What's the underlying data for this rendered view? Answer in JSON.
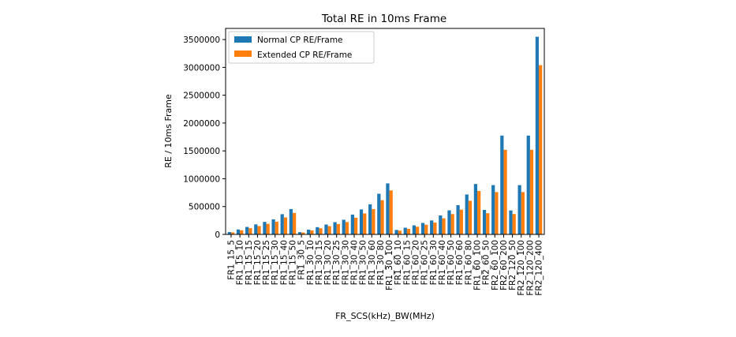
{
  "chart_data": {
    "type": "bar",
    "title": "Total RE in 10ms Frame",
    "xlabel": "FR_SCS(kHz)_BW(MHz)",
    "ylabel": "RE / 10ms Frame",
    "ylim": [
      0,
      3700000
    ],
    "yticks": [
      0,
      500000,
      1000000,
      1500000,
      2000000,
      2500000,
      3000000,
      3500000
    ],
    "ytick_labels": [
      "0",
      "500000",
      "1000000",
      "1500000",
      "2000000",
      "2500000",
      "3000000",
      "3500000"
    ],
    "legend_position": "upper-left",
    "grid": false,
    "categories": [
      "FR1_15_5",
      "FR1_15_10",
      "FR1_15_15",
      "FR1_15_20",
      "FR1_15_25",
      "FR1_15_30",
      "FR1_15_40",
      "FR1_15_50",
      "FR1_30_5",
      "FR1_30_10",
      "FR1_30_15",
      "FR1_30_20",
      "FR1_30_25",
      "FR1_30_30",
      "FR1_30_40",
      "FR1_30_50",
      "FR1_30_60",
      "FR1_30_80",
      "FR1_30_100",
      "FR1_60_10",
      "FR1_60_15",
      "FR1_60_20",
      "FR1_60_25",
      "FR1_60_30",
      "FR1_60_40",
      "FR1_60_50",
      "FR1_60_60",
      "FR1_60_80",
      "FR1_60_100",
      "FR2_60_50",
      "FR2_60_100",
      "FR2_60_200",
      "FR2_120_50",
      "FR2_120_100",
      "FR2_120_200",
      "FR2_120_400"
    ],
    "series": [
      {
        "name": "Normal CP RE/Frame",
        "color": "#1f77b4",
        "values": [
          42000,
          88000,
          134000,
          180000,
          225000,
          270000,
          363000,
          455000,
          40000,
          85000,
          130000,
          177000,
          220000,
          263000,
          356000,
          448000,
          540000,
          730000,
          916000,
          80000,
          120000,
          162000,
          206000,
          250000,
          340000,
          432000,
          525000,
          717000,
          905000,
          440000,
          885000,
          1775000,
          430000,
          885000,
          1775000,
          3550000
        ]
      },
      {
        "name": "Extended CP RE/Frame",
        "color": "#ff7f0e",
        "values": [
          36000,
          74000,
          112000,
          150000,
          190000,
          228000,
          305000,
          385000,
          34000,
          72000,
          110000,
          148000,
          186000,
          222000,
          300000,
          377000,
          455000,
          615000,
          790000,
          68000,
          100000,
          138000,
          174000,
          212000,
          288000,
          365000,
          444000,
          604000,
          780000,
          380000,
          760000,
          1520000,
          365000,
          760000,
          1520000,
          3040000
        ]
      }
    ]
  }
}
